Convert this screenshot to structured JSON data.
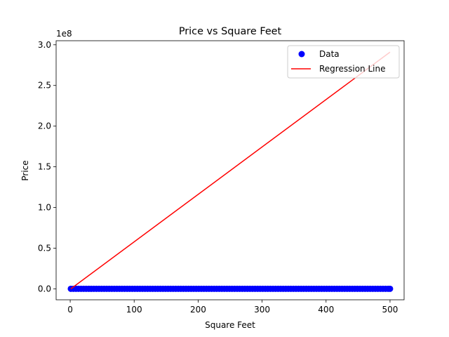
{
  "chart_data": {
    "type": "scatter",
    "title": "Price vs Square Feet",
    "xlabel": "Square Feet",
    "ylabel": "Price",
    "offset_label": "1e8",
    "xlim": [
      -22,
      522
    ],
    "ylim": [
      -13500000,
      305000000
    ],
    "xticks": [
      0,
      100,
      200,
      300,
      400,
      500
    ],
    "xtick_labels": [
      "0",
      "100",
      "200",
      "300",
      "400",
      "500"
    ],
    "yticks": [
      0,
      50000000,
      100000000,
      150000000,
      200000000,
      250000000,
      300000000
    ],
    "ytick_labels": [
      "0.0",
      "0.5",
      "1.0",
      "1.5",
      "2.0",
      "2.5",
      "3.0"
    ],
    "grid": false,
    "legend_position": "top-right",
    "series": [
      {
        "name": "Data",
        "kind": "scatter",
        "color": "#0000ff",
        "x_start": 1,
        "x_end": 500,
        "x_step": 4,
        "y_constant": 0
      },
      {
        "name": "Regression Line",
        "kind": "line",
        "color": "#ff0000",
        "x": [
          1,
          500
        ],
        "y": [
          0,
          291000000
        ]
      }
    ]
  }
}
